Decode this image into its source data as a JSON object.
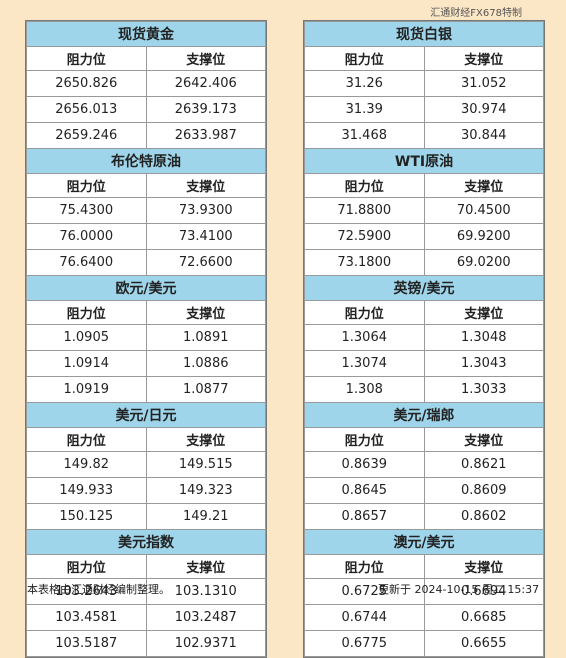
{
  "watermark": "汇通财经FX678特制",
  "headers": {
    "resistance": "阻力位",
    "support": "支撑位"
  },
  "left_sections": [
    {
      "title": "现货黄金",
      "rows": [
        [
          "2650.826",
          "2642.406"
        ],
        [
          "2656.013",
          "2639.173"
        ],
        [
          "2659.246",
          "2633.987"
        ]
      ]
    },
    {
      "title": "布伦特原油",
      "rows": [
        [
          "75.4300",
          "73.9300"
        ],
        [
          "76.0000",
          "73.4100"
        ],
        [
          "76.6400",
          "72.6600"
        ]
      ]
    },
    {
      "title": "欧元/美元",
      "rows": [
        [
          "1.0905",
          "1.0891"
        ],
        [
          "1.0914",
          "1.0886"
        ],
        [
          "1.0919",
          "1.0877"
        ]
      ]
    },
    {
      "title": "美元/日元",
      "rows": [
        [
          "149.82",
          "149.515"
        ],
        [
          "149.933",
          "149.323"
        ],
        [
          "150.125",
          "149.21"
        ]
      ]
    },
    {
      "title": "美元指数",
      "rows": [
        [
          "103.2643",
          "103.1310"
        ],
        [
          "103.4581",
          "103.2487"
        ],
        [
          "103.5187",
          "102.9371"
        ]
      ]
    }
  ],
  "right_sections": [
    {
      "title": "现货白银",
      "rows": [
        [
          "31.26",
          "31.052"
        ],
        [
          "31.39",
          "30.974"
        ],
        [
          "31.468",
          "30.844"
        ]
      ]
    },
    {
      "title": "WTI原油",
      "rows": [
        [
          "71.8800",
          "70.4500"
        ],
        [
          "72.5900",
          "69.9200"
        ],
        [
          "73.1800",
          "69.0200"
        ]
      ]
    },
    {
      "title": "英镑/美元",
      "rows": [
        [
          "1.3064",
          "1.3048"
        ],
        [
          "1.3074",
          "1.3043"
        ],
        [
          "1.308",
          "1.3033"
        ]
      ]
    },
    {
      "title": "美元/瑞郎",
      "rows": [
        [
          "0.8639",
          "0.8621"
        ],
        [
          "0.8645",
          "0.8609"
        ],
        [
          "0.8657",
          "0.8602"
        ]
      ]
    },
    {
      "title": "澳元/美元",
      "rows": [
        [
          "0.6725",
          "0.6694"
        ],
        [
          "0.6744",
          "0.6685"
        ],
        [
          "0.6775",
          "0.6655"
        ]
      ]
    }
  ],
  "footer": {
    "note": "本表格由汇通财经编制整理。",
    "updated": "更新于  2024-10-15  周二  15:37"
  }
}
